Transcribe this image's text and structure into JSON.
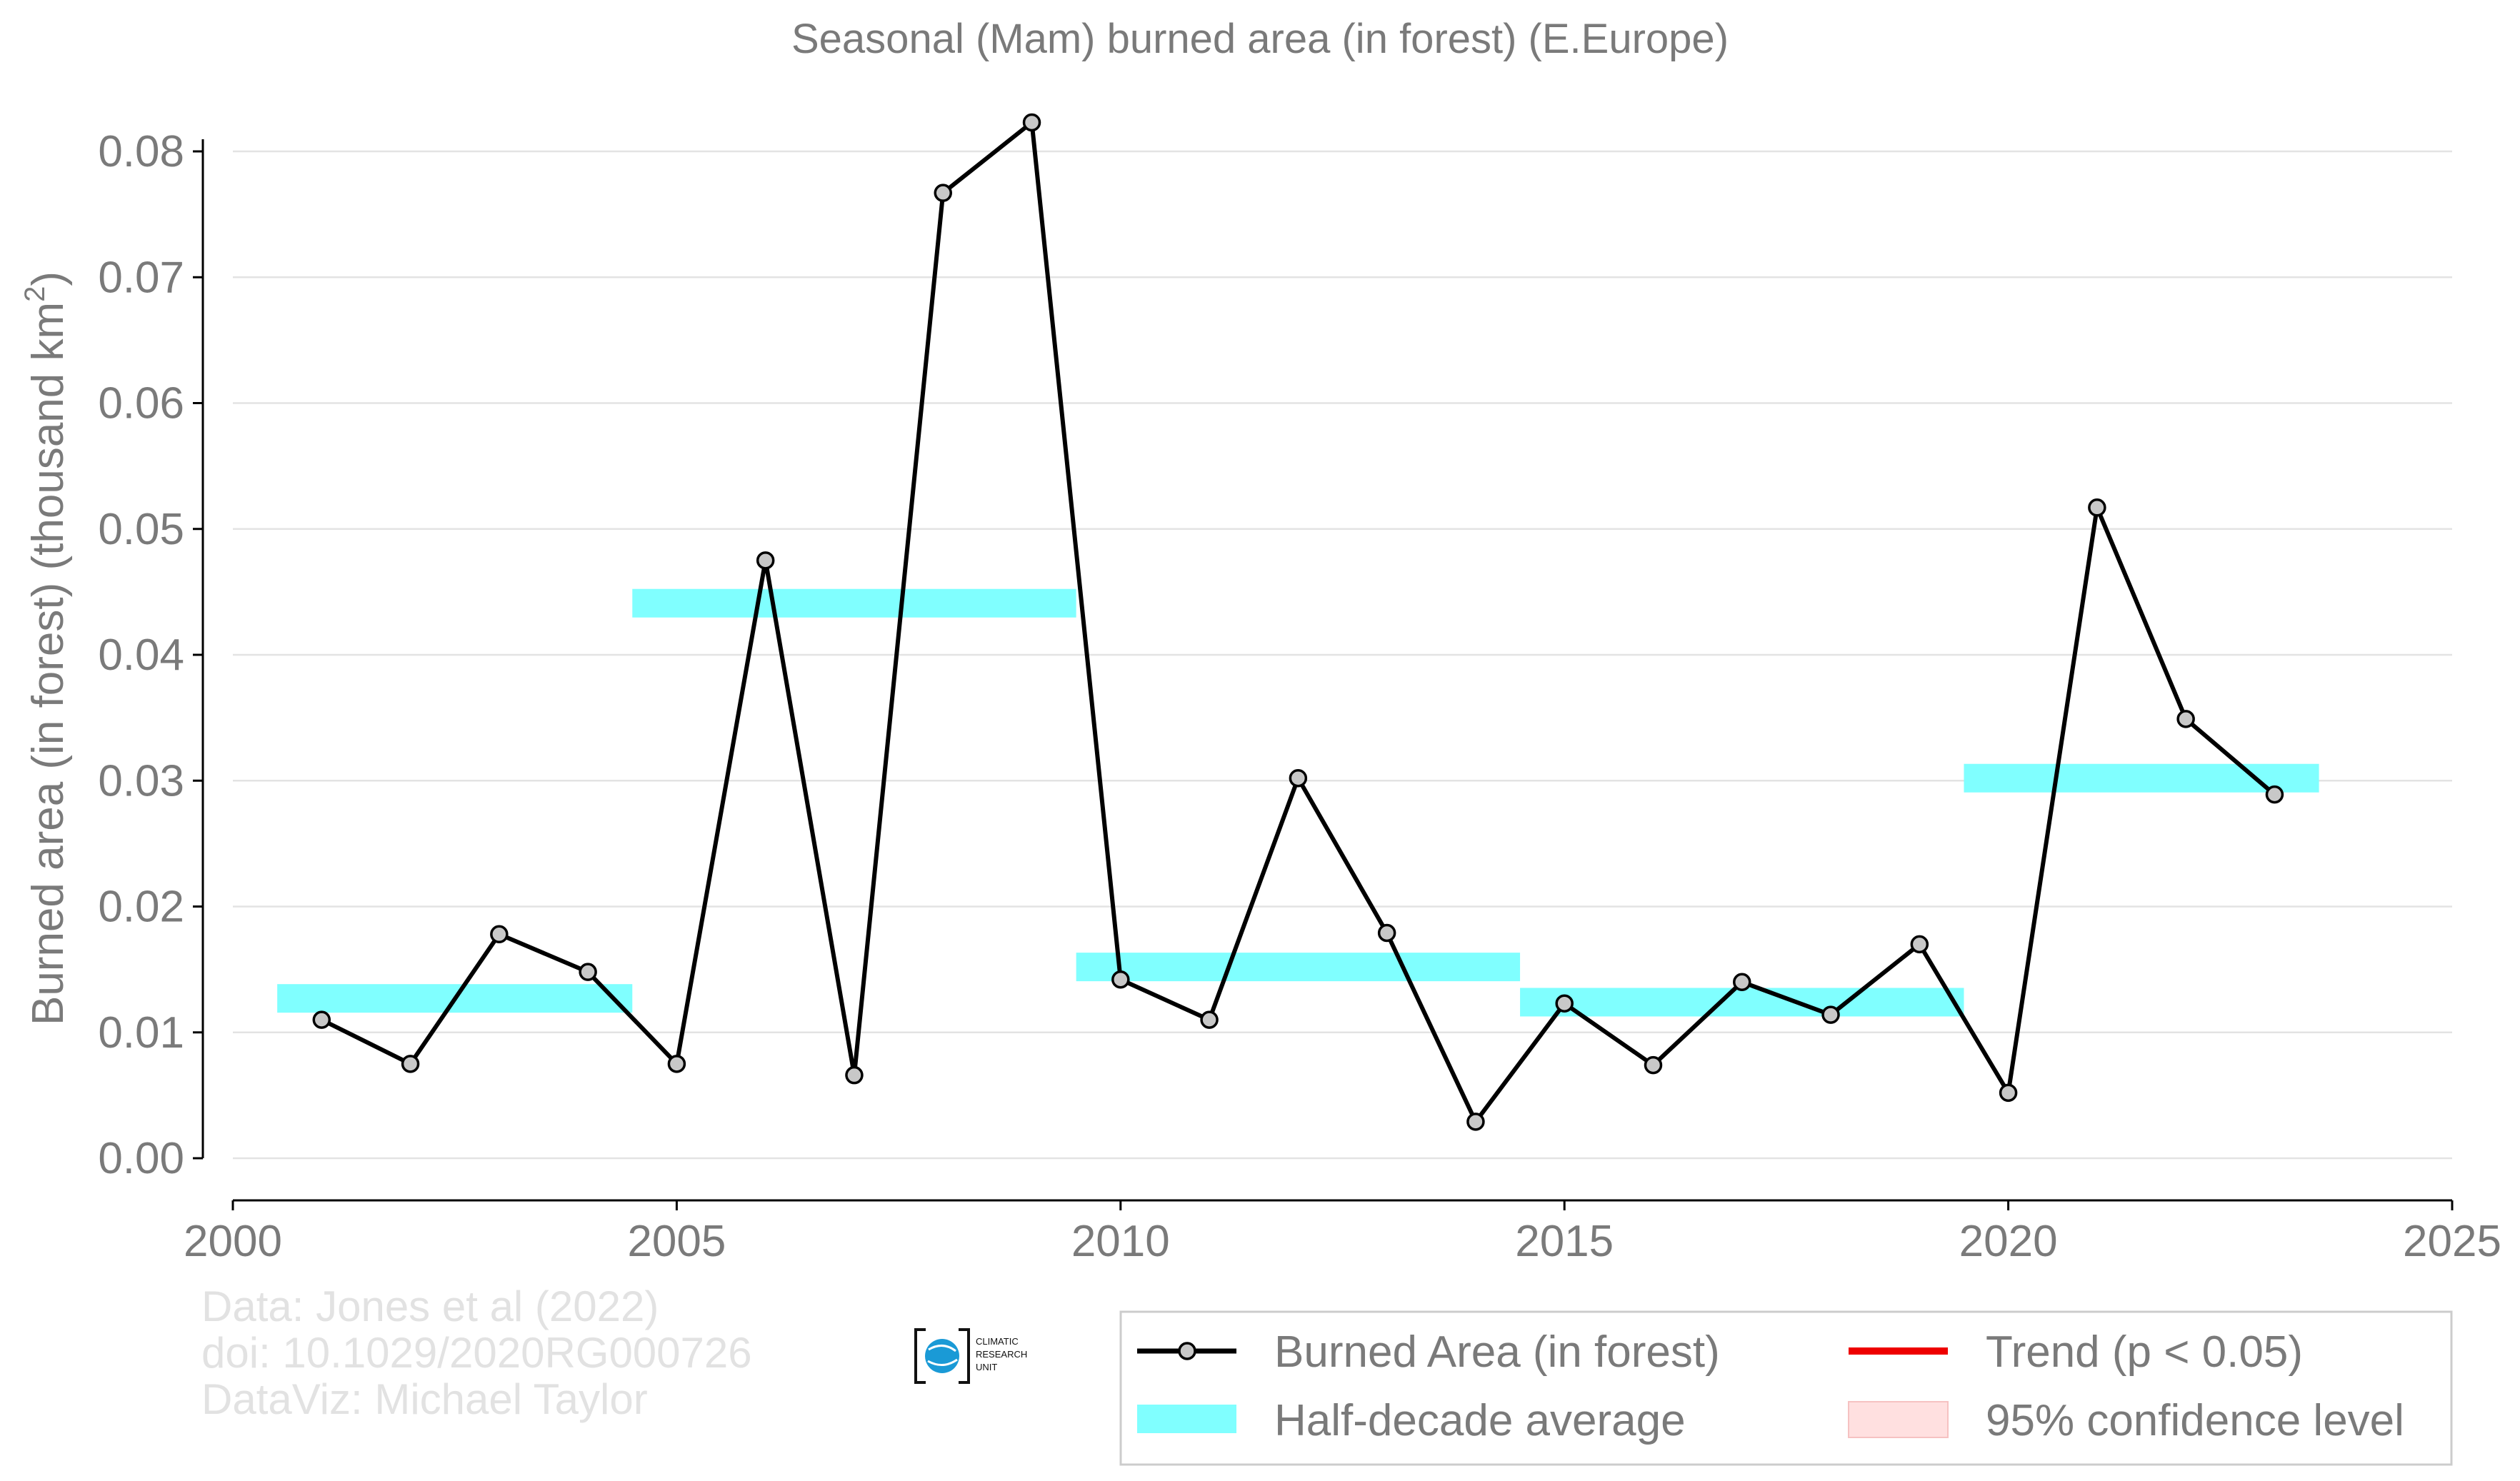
{
  "chart_data": {
    "type": "line",
    "title": "Seasonal (Mam) burned area (in forest) (E.Europe)",
    "ylabel": "Burned area (in forest) (thousand km",
    "ylabel_sup": "2",
    "ylabel_close": ")",
    "xlim": [
      2000,
      2025
    ],
    "ylim": [
      0,
      0.08
    ],
    "xticks": [
      2000,
      2005,
      2010,
      2015,
      2020,
      2025
    ],
    "xtick_labels": [
      "2000",
      "2005",
      "2010",
      "2015",
      "2020",
      "2025"
    ],
    "yticks": [
      0,
      0.01,
      0.02,
      0.03,
      0.04,
      0.05,
      0.06,
      0.07,
      0.08
    ],
    "ytick_labels": [
      "0.00",
      "0.01",
      "0.02",
      "0.03",
      "0.04",
      "0.05",
      "0.06",
      "0.07",
      "0.08"
    ],
    "grid": true,
    "legend_position": "bottom-right",
    "series": [
      {
        "name": "Burned Area (in forest)",
        "color": "#000000",
        "x": [
          2001,
          2002,
          2003,
          2004,
          2005,
          2006,
          2007,
          2008,
          2009,
          2010,
          2011,
          2012,
          2013,
          2014,
          2015,
          2016,
          2017,
          2018,
          2019,
          2020,
          2021,
          2022,
          2023
        ],
        "y": [
          0.011,
          0.0075,
          0.0178,
          0.0148,
          0.0075,
          0.0475,
          0.0066,
          0.0767,
          0.0823,
          0.0142,
          0.011,
          0.0302,
          0.0179,
          0.0029,
          0.0123,
          0.0074,
          0.014,
          0.0114,
          0.017,
          0.0052,
          0.0517,
          0.0349,
          0.0289
        ]
      }
    ],
    "half_decade": {
      "name": "Half-decade average",
      "color": "#80ffff",
      "segments": [
        {
          "x0": 2000.5,
          "x1": 2004.5,
          "y": 0.0127
        },
        {
          "x0": 2004.5,
          "x1": 2009.5,
          "y": 0.0441
        },
        {
          "x0": 2009.5,
          "x1": 2014.5,
          "y": 0.0152
        },
        {
          "x0": 2014.5,
          "x1": 2019.5,
          "y": 0.0124
        },
        {
          "x0": 2019.5,
          "x1": 2023.5,
          "y": 0.0302
        }
      ]
    },
    "legend": [
      {
        "label": "Burned Area (in forest)",
        "symbol": "line-marker",
        "color": "#000000"
      },
      {
        "label": "Trend (p < 0.05)",
        "symbol": "line",
        "color": "#ee0000"
      },
      {
        "label": "Half-decade average",
        "symbol": "band",
        "color": "#80ffff"
      },
      {
        "label": "95% confidence level",
        "symbol": "patch",
        "color": "#ffe0e0"
      }
    ]
  },
  "credits": {
    "line1": "Data: Jones et al (2022)",
    "line2": "doi: 10.1029/2020RG000726",
    "line3": "DataViz: Michael Taylor"
  },
  "logo": {
    "line1": "CLIMATIC",
    "line2": "RESEARCH",
    "line3": "UNIT"
  }
}
